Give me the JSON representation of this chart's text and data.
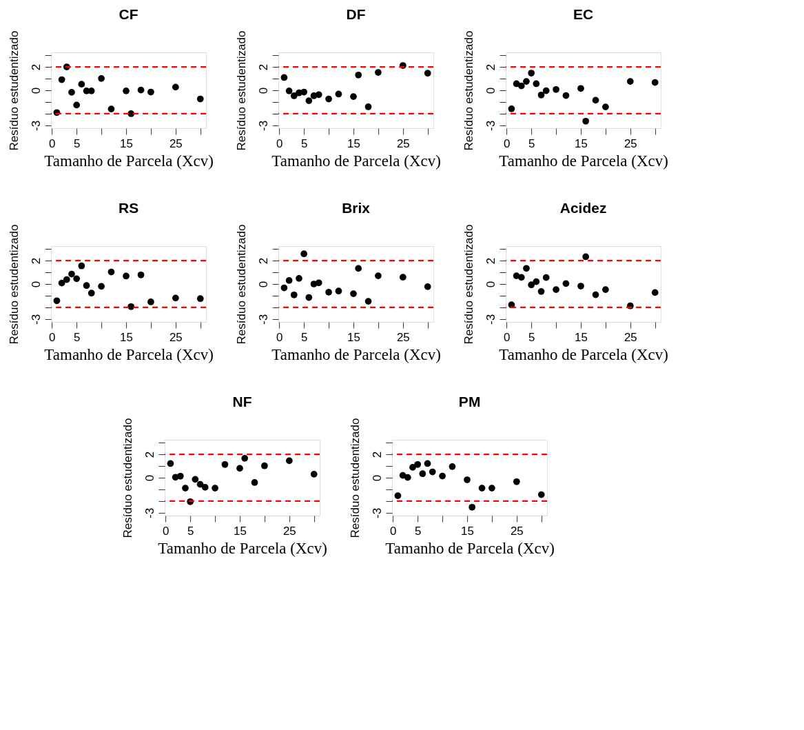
{
  "chart_data": [
    {
      "type": "scatter",
      "title": "CF",
      "xlabel": "Tamanho de Parcela (Xcv)",
      "ylabel": "Resíduo estudentizado",
      "marker": "circle",
      "grid": false,
      "xlim": [
        -0.16,
        31.16
      ],
      "ylim": [
        -3.24,
        3.24
      ],
      "xticks": [
        0,
        5,
        {
          "value": 10,
          "label": null
        },
        15,
        {
          "value": 20,
          "label": null
        },
        25,
        {
          "value": 30,
          "label": null
        }
      ],
      "yticks": [
        -3,
        {
          "value": -2,
          "label": null
        },
        {
          "value": -1,
          "label": null
        },
        0,
        {
          "value": 1,
          "label": null
        },
        2,
        {
          "value": 3,
          "label": null
        }
      ],
      "ref_lines": [
        {
          "axis": "y",
          "value": 2,
          "color": "#ff0000",
          "line_style": "dashed"
        },
        {
          "axis": "y",
          "value": -2,
          "color": "#ff0000",
          "line_style": "dashed"
        }
      ],
      "x": [
        1,
        2,
        3,
        4,
        5,
        6,
        7,
        8,
        10,
        12,
        15,
        16,
        18,
        20,
        25,
        30
      ],
      "series": [
        {
          "color": "#000000",
          "values": [
            -1.9,
            0.91,
            2.0,
            -0.17,
            -1.26,
            0.52,
            -0.05,
            -0.05,
            1.01,
            -1.6,
            -0.05,
            -2.0,
            0.02,
            -0.15,
            0.27,
            -0.74
          ]
        }
      ]
    },
    {
      "type": "scatter",
      "title": "DF",
      "xlabel": "Tamanho de Parcela (Xcv)",
      "ylabel": "Resíduo estudentizado",
      "marker": "circle",
      "grid": false,
      "xlim": [
        -0.16,
        31.16
      ],
      "ylim": [
        -3.24,
        3.24
      ],
      "xticks": [
        0,
        5,
        {
          "value": 10,
          "label": null
        },
        15,
        {
          "value": 20,
          "label": null
        },
        25,
        {
          "value": 30,
          "label": null
        }
      ],
      "yticks": [
        -3,
        {
          "value": -2,
          "label": null
        },
        {
          "value": -1,
          "label": null
        },
        0,
        {
          "value": 1,
          "label": null
        },
        2,
        {
          "value": 3,
          "label": null
        }
      ],
      "ref_lines": [
        {
          "axis": "y",
          "value": 2,
          "color": "#ff0000",
          "line_style": "dashed"
        },
        {
          "axis": "y",
          "value": -2,
          "color": "#ff0000",
          "line_style": "dashed"
        }
      ],
      "x": [
        1,
        2,
        3,
        4,
        5,
        6,
        7,
        8,
        10,
        12,
        15,
        16,
        18,
        20,
        25,
        30
      ],
      "series": [
        {
          "color": "#000000",
          "values": [
            1.09,
            -0.05,
            -0.47,
            -0.22,
            -0.15,
            -0.89,
            -0.47,
            -0.37,
            -0.74,
            -0.32,
            -0.54,
            1.31,
            -1.41,
            1.53,
            2.12,
            1.46
          ]
        }
      ]
    },
    {
      "type": "scatter",
      "title": "EC",
      "xlabel": "Tamanho de Parcela (Xcv)",
      "ylabel": "Resíduo estudentizado",
      "marker": "circle",
      "grid": false,
      "xlim": [
        -0.16,
        31.16
      ],
      "ylim": [
        -3.24,
        3.24
      ],
      "xticks": [
        0,
        5,
        {
          "value": 10,
          "label": null
        },
        15,
        {
          "value": 20,
          "label": null
        },
        25,
        {
          "value": 30,
          "label": null
        }
      ],
      "yticks": [
        -3,
        {
          "value": -2,
          "label": null
        },
        {
          "value": -1,
          "label": null
        },
        0,
        {
          "value": 1,
          "label": null
        },
        2,
        {
          "value": 3,
          "label": null
        }
      ],
      "ref_lines": [
        {
          "axis": "y",
          "value": 2,
          "color": "#ff0000",
          "line_style": "dashed"
        },
        {
          "axis": "y",
          "value": -2,
          "color": "#ff0000",
          "line_style": "dashed"
        }
      ],
      "x": [
        1,
        2,
        3,
        4,
        5,
        6,
        7,
        8,
        10,
        12,
        15,
        16,
        18,
        20,
        25,
        30
      ],
      "series": [
        {
          "color": "#000000",
          "values": [
            -1.58,
            0.56,
            0.38,
            0.76,
            1.47,
            0.56,
            -0.4,
            -0.04,
            0.07,
            -0.45,
            0.16,
            -2.64,
            -0.85,
            -1.42,
            0.76,
            0.67
          ]
        }
      ]
    },
    {
      "type": "scatter",
      "title": "RS",
      "xlabel": "Tamanho de Parcela (Xcv)",
      "ylabel": "Resíduo estudentizado",
      "marker": "circle",
      "grid": false,
      "xlim": [
        -0.16,
        31.16
      ],
      "ylim": [
        -3.24,
        3.24
      ],
      "xticks": [
        0,
        5,
        {
          "value": 10,
          "label": null
        },
        15,
        {
          "value": 20,
          "label": null
        },
        25,
        {
          "value": 30,
          "label": null
        }
      ],
      "yticks": [
        -3,
        {
          "value": -2,
          "label": null
        },
        {
          "value": -1,
          "label": null
        },
        0,
        {
          "value": 1,
          "label": null
        },
        2,
        {
          "value": 3,
          "label": null
        }
      ],
      "ref_lines": [
        {
          "axis": "y",
          "value": 2,
          "color": "#ff0000",
          "line_style": "dashed"
        },
        {
          "axis": "y",
          "value": -2,
          "color": "#ff0000",
          "line_style": "dashed"
        }
      ],
      "x": [
        1,
        2,
        3,
        4,
        5,
        6,
        7,
        8,
        10,
        12,
        15,
        16,
        18,
        20,
        25,
        30
      ],
      "series": [
        {
          "color": "#000000",
          "values": [
            -1.43,
            0.08,
            0.38,
            0.85,
            0.45,
            1.55,
            -0.13,
            -0.78,
            -0.2,
            1.03,
            0.68,
            -1.93,
            0.78,
            -1.53,
            -1.2,
            -1.25
          ]
        }
      ]
    },
    {
      "type": "scatter",
      "title": "Brix",
      "xlabel": "Tamanho de Parcela (Xcv)",
      "ylabel": "Resíduo estudentizado",
      "marker": "circle",
      "grid": false,
      "xlim": [
        -0.16,
        31.16
      ],
      "ylim": [
        -3.24,
        3.24
      ],
      "xticks": [
        0,
        5,
        {
          "value": 10,
          "label": null
        },
        15,
        {
          "value": 20,
          "label": null
        },
        25,
        {
          "value": 30,
          "label": null
        }
      ],
      "yticks": [
        -3,
        {
          "value": -2,
          "label": null
        },
        {
          "value": -1,
          "label": null
        },
        0,
        {
          "value": 1,
          "label": null
        },
        2,
        {
          "value": 3,
          "label": null
        }
      ],
      "ref_lines": [
        {
          "axis": "y",
          "value": 2,
          "color": "#ff0000",
          "line_style": "dashed"
        },
        {
          "axis": "y",
          "value": -2,
          "color": "#ff0000",
          "line_style": "dashed"
        }
      ],
      "x": [
        1,
        2,
        3,
        4,
        5,
        6,
        7,
        8,
        10,
        12,
        15,
        16,
        18,
        20,
        25,
        30
      ],
      "series": [
        {
          "color": "#000000",
          "values": [
            -0.33,
            0.3,
            -0.93,
            0.48,
            2.58,
            -1.15,
            0.0,
            0.1,
            -0.7,
            -0.6,
            -0.83,
            1.33,
            -1.48,
            0.7,
            0.58,
            -0.23
          ]
        }
      ]
    },
    {
      "type": "scatter",
      "title": "Acidez",
      "xlabel": "Tamanho de Parcela (Xcv)",
      "ylabel": "Resíduo estudentizado",
      "marker": "circle",
      "grid": false,
      "xlim": [
        -0.16,
        31.16
      ],
      "ylim": [
        -3.24,
        3.24
      ],
      "xticks": [
        0,
        5,
        {
          "value": 10,
          "label": null
        },
        15,
        {
          "value": 20,
          "label": null
        },
        25,
        {
          "value": 30,
          "label": null
        }
      ],
      "yticks": [
        -3,
        {
          "value": -2,
          "label": null
        },
        {
          "value": -1,
          "label": null
        },
        0,
        {
          "value": 1,
          "label": null
        },
        2,
        {
          "value": 3,
          "label": null
        }
      ],
      "ref_lines": [
        {
          "axis": "y",
          "value": 2,
          "color": "#ff0000",
          "line_style": "dashed"
        },
        {
          "axis": "y",
          "value": -2,
          "color": "#ff0000",
          "line_style": "dashed"
        }
      ],
      "x": [
        1,
        2,
        3,
        4,
        5,
        6,
        7,
        8,
        10,
        12,
        15,
        16,
        18,
        20,
        25,
        30
      ],
      "series": [
        {
          "color": "#000000",
          "values": [
            -1.78,
            0.7,
            0.57,
            1.34,
            -0.07,
            0.2,
            -0.64,
            0.55,
            -0.48,
            0.04,
            -0.18,
            2.33,
            -0.92,
            -0.48,
            -1.87,
            -0.73
          ]
        }
      ]
    },
    {
      "type": "scatter",
      "title": "NF",
      "xlabel": "Tamanho de Parcela (Xcv)",
      "ylabel": "Resíduo estudentizado",
      "marker": "circle",
      "grid": false,
      "xlim": [
        -0.16,
        31.16
      ],
      "ylim": [
        -3.24,
        3.24
      ],
      "xticks": [
        0,
        5,
        {
          "value": 10,
          "label": null
        },
        15,
        {
          "value": 20,
          "label": null
        },
        25,
        {
          "value": 30,
          "label": null
        }
      ],
      "yticks": [
        -3,
        {
          "value": -2,
          "label": null
        },
        {
          "value": -1,
          "label": null
        },
        0,
        {
          "value": 1,
          "label": null
        },
        2,
        {
          "value": 3,
          "label": null
        }
      ],
      "ref_lines": [
        {
          "axis": "y",
          "value": 2,
          "color": "#ff0000",
          "line_style": "dashed"
        },
        {
          "axis": "y",
          "value": -2,
          "color": "#ff0000",
          "line_style": "dashed"
        }
      ],
      "x": [
        1,
        2,
        3,
        4,
        5,
        6,
        7,
        8,
        10,
        12,
        15,
        16,
        18,
        20,
        25,
        30
      ],
      "series": [
        {
          "color": "#000000",
          "values": [
            1.21,
            0.04,
            0.13,
            -0.89,
            -2.05,
            -0.14,
            -0.57,
            -0.82,
            -0.89,
            1.13,
            0.8,
            1.66,
            -0.41,
            1.02,
            1.45,
            0.3
          ]
        }
      ]
    },
    {
      "type": "scatter",
      "title": "PM",
      "xlabel": "Tamanho de Parcela (Xcv)",
      "ylabel": "Resíduo estudentizado",
      "marker": "circle",
      "grid": false,
      "xlim": [
        -0.16,
        31.16
      ],
      "ylim": [
        -3.24,
        3.24
      ],
      "xticks": [
        0,
        5,
        {
          "value": 10,
          "label": null
        },
        15,
        {
          "value": 20,
          "label": null
        },
        25,
        {
          "value": 30,
          "label": null
        }
      ],
      "yticks": [
        -3,
        {
          "value": -2,
          "label": null
        },
        {
          "value": -1,
          "label": null
        },
        0,
        {
          "value": 1,
          "label": null
        },
        2,
        {
          "value": 3,
          "label": null
        }
      ],
      "ref_lines": [
        {
          "axis": "y",
          "value": 2,
          "color": "#ff0000",
          "line_style": "dashed"
        },
        {
          "axis": "y",
          "value": -2,
          "color": "#ff0000",
          "line_style": "dashed"
        }
      ],
      "x": [
        1,
        2,
        3,
        4,
        5,
        6,
        7,
        8,
        10,
        12,
        15,
        16,
        18,
        20,
        25,
        30
      ],
      "series": [
        {
          "color": "#000000",
          "values": [
            -1.54,
            0.2,
            0.02,
            0.89,
            1.13,
            0.34,
            1.21,
            0.5,
            0.14,
            0.95,
            -0.18,
            -2.52,
            -0.89,
            -0.89,
            -0.34,
            -1.45
          ]
        }
      ]
    }
  ]
}
